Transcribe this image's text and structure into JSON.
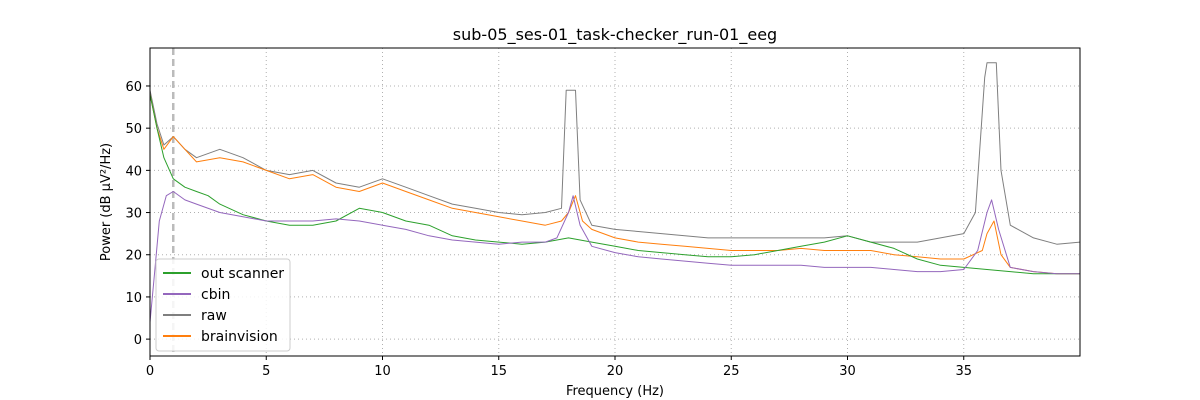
{
  "chart_data": {
    "type": "line",
    "title": "sub-05_ses-01_task-checker_run-01_eeg",
    "xlabel": "Frequency (Hz)",
    "ylabel": "Power (dB µV²/Hz)",
    "xlim": [
      0,
      40
    ],
    "ylim": [
      -4,
      69
    ],
    "xticks": [
      0,
      5,
      10,
      15,
      20,
      25,
      30,
      35
    ],
    "yticks": [
      0,
      10,
      20,
      30,
      40,
      50,
      60
    ],
    "grid": true,
    "legend_position": "lower-left",
    "vlines": [
      {
        "x": 1,
        "style": "dashed",
        "color": "#bbbbbb"
      }
    ],
    "series": [
      {
        "name": "out scanner",
        "color": "#2ca02c",
        "x": [
          0,
          0.3,
          0.6,
          1,
          1.5,
          2,
          2.5,
          3,
          4,
          5,
          6,
          7,
          8,
          9,
          10,
          11,
          12,
          13,
          14,
          15,
          16,
          17,
          18,
          19,
          20,
          21,
          22,
          23,
          24,
          25,
          26,
          27,
          28,
          29,
          30,
          31,
          32,
          33,
          34,
          35,
          36,
          37,
          38,
          39,
          40
        ],
        "values": [
          58,
          50,
          43,
          38,
          36,
          35,
          34,
          32,
          29.5,
          28,
          27,
          27,
          28,
          31,
          30,
          28,
          27,
          24.5,
          23.5,
          23,
          22.5,
          23,
          24,
          23,
          22,
          21,
          20.5,
          20,
          19.5,
          19.5,
          20,
          21,
          22,
          23,
          24.5,
          23,
          21.5,
          19,
          17.5,
          17,
          16.5,
          16,
          15.5,
          15.5,
          15.5
        ]
      },
      {
        "name": "cbin",
        "color": "#9467bd",
        "x": [
          0,
          0.2,
          0.4,
          0.7,
          1,
          1.5,
          2,
          3,
          4,
          5,
          6,
          7,
          8,
          9,
          10,
          11,
          12,
          13,
          14,
          15,
          16,
          17,
          17.5,
          18,
          18.2,
          18.5,
          19,
          20,
          21,
          22,
          23,
          24,
          25,
          26,
          27,
          28,
          29,
          30,
          31,
          32,
          33,
          34,
          35,
          35.6,
          36,
          36.2,
          36.5,
          37,
          38,
          39,
          40
        ],
        "values": [
          4,
          16,
          28,
          34,
          35,
          33,
          32,
          30,
          29,
          28,
          28,
          28,
          28.5,
          28,
          27,
          26,
          24.5,
          23.5,
          23,
          22.5,
          23,
          23,
          24,
          30,
          34,
          27,
          22,
          20.5,
          19.5,
          19,
          18.5,
          18,
          17.5,
          17.5,
          17.5,
          17.5,
          17,
          17,
          17,
          16.5,
          16,
          16,
          16.5,
          21,
          30,
          33,
          26,
          17,
          16,
          15.5,
          15.5
        ]
      },
      {
        "name": "raw",
        "color": "#7f7f7f",
        "x": [
          0,
          0.3,
          0.6,
          1,
          1.5,
          2,
          3,
          4,
          5,
          6,
          7,
          8,
          9,
          10,
          11,
          12,
          13,
          14,
          15,
          16,
          17,
          17.7,
          17.9,
          18,
          18.3,
          18.5,
          19,
          20,
          21,
          22,
          23,
          24,
          25,
          26,
          27,
          28,
          29,
          30,
          31,
          32,
          33,
          34,
          35,
          35.5,
          35.9,
          36,
          36.4,
          36.6,
          37,
          38,
          39,
          40
        ],
        "values": [
          59,
          51,
          46,
          48,
          45,
          43,
          45,
          43,
          40,
          39,
          40,
          37,
          36,
          38,
          36,
          34,
          32,
          31,
          30,
          29.5,
          30,
          31,
          59,
          59,
          59,
          33,
          27,
          26,
          25.5,
          25,
          24.5,
          24,
          24,
          24,
          24,
          24,
          24,
          24.5,
          23,
          23,
          23,
          24,
          25,
          30,
          62,
          65.5,
          65.5,
          40,
          27,
          24,
          22.5,
          23
        ]
      },
      {
        "name": "brainvision",
        "color": "#ff7f0e",
        "x": [
          0,
          0.3,
          0.6,
          1,
          1.5,
          2,
          3,
          4,
          5,
          6,
          7,
          8,
          9,
          10,
          11,
          12,
          13,
          14,
          15,
          16,
          17,
          17.7,
          18,
          18.3,
          18.6,
          19,
          20,
          21,
          22,
          23,
          24,
          25,
          26,
          27,
          28,
          29,
          30,
          31,
          32,
          33,
          34,
          35,
          35.8,
          36,
          36.3,
          36.6,
          37,
          38,
          39,
          40
        ],
        "values": [
          58,
          50,
          45,
          48,
          45,
          42,
          43,
          42,
          40,
          38,
          39,
          36,
          35,
          37,
          35,
          33,
          31,
          30,
          29,
          28,
          27,
          28,
          30,
          34,
          28,
          26,
          24,
          23,
          22.5,
          22,
          21.5,
          21,
          21,
          21,
          21.5,
          21,
          21,
          21,
          20,
          19.5,
          19,
          19,
          21,
          25,
          28,
          20,
          17,
          16,
          15.5,
          15.5
        ]
      }
    ]
  }
}
